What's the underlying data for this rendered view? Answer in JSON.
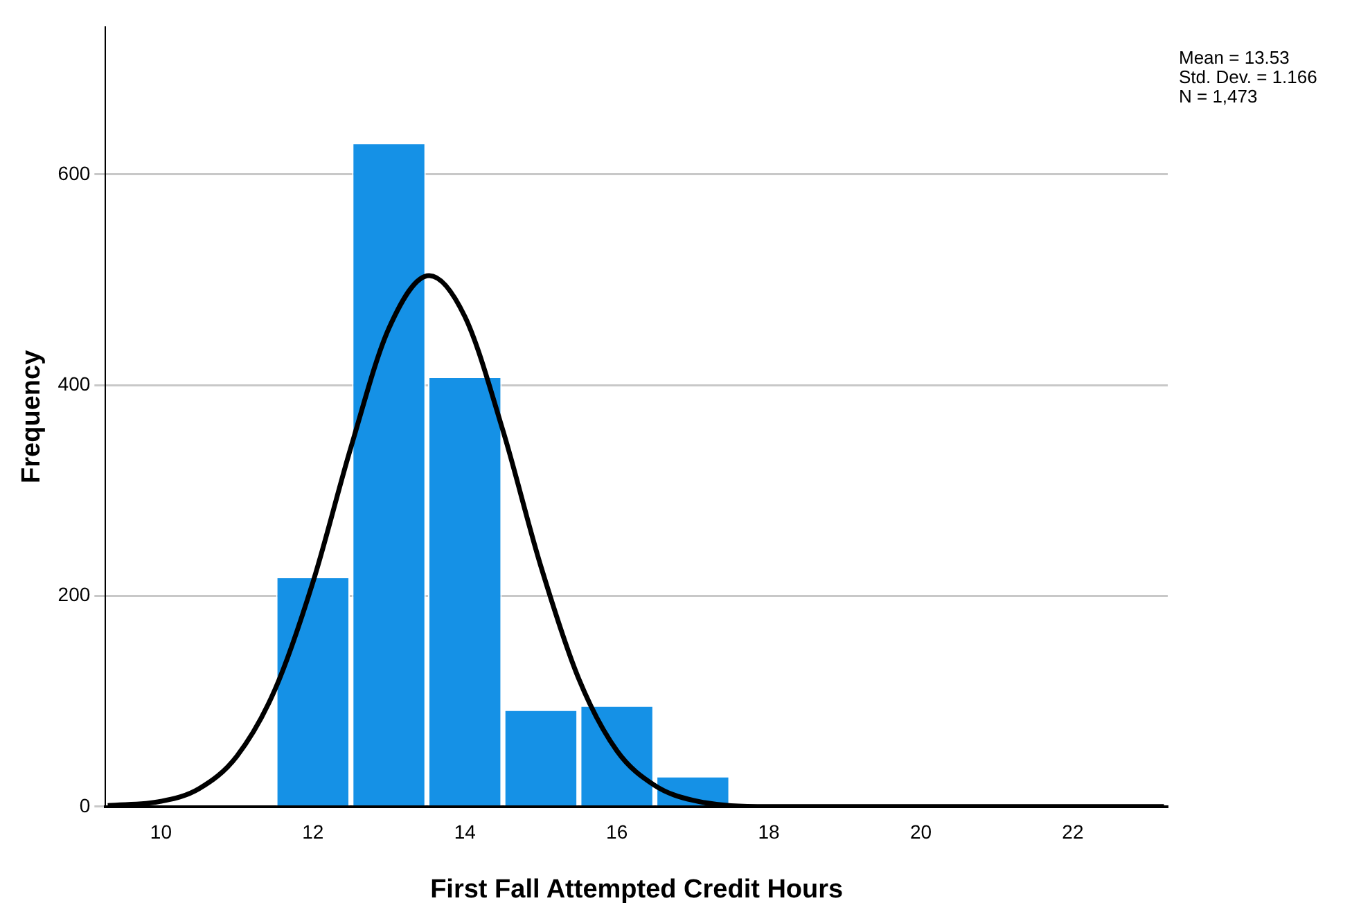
{
  "chart_data": {
    "type": "histogram",
    "xlabel": "First Fall Attempted Credit Hours",
    "ylabel": "Frequency",
    "bins": [
      11.5,
      12.5,
      13.5,
      14.5,
      15.5,
      16.5,
      17.5
    ],
    "values": [
      218,
      630,
      408,
      92,
      96,
      29
    ],
    "color": "#1591e6",
    "series": [
      {
        "type": "line",
        "color": "#000000",
        "x": [
          9.3,
          10,
          10.5,
          11,
          11.5,
          12,
          12.5,
          13,
          13.53,
          14,
          14.5,
          15,
          15.5,
          16,
          16.5,
          17,
          18,
          19,
          20,
          21,
          22,
          23.2
        ],
        "values": [
          1,
          5,
          17,
          48,
          111,
          213,
          341,
          454,
          504,
          465,
          357,
          228,
          121,
          53,
          20,
          6,
          0,
          0,
          0,
          0,
          0,
          0
        ]
      }
    ],
    "xlim": [
      9.27,
      23.25
    ],
    "xticks": [
      10,
      12,
      14,
      16,
      18,
      20,
      22
    ],
    "ylim": [
      0,
      740
    ],
    "yticks": [
      0,
      200,
      400,
      600
    ],
    "grid": "y",
    "legend": false,
    "marker": "none",
    "line_style": "solid",
    "annotations": [
      "Mean = 13.53",
      "Std. Dev. = 1.166",
      "N = 1,473"
    ]
  }
}
